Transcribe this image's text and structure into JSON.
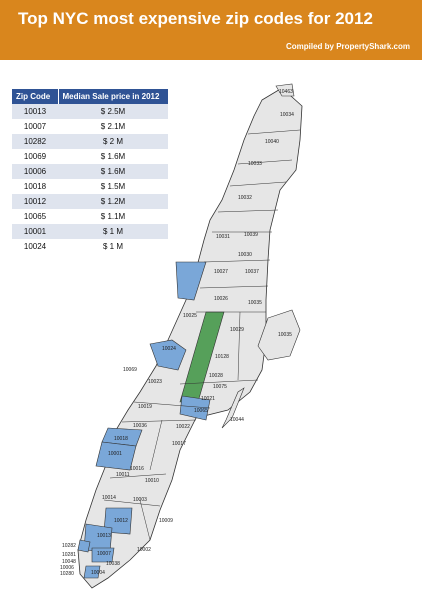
{
  "header": {
    "title": "Top NYC most expensive zip codes for 2012",
    "credit": "Compiled by PropertyShark.com"
  },
  "legend_table": {
    "columns": [
      "Zip Code",
      "Median Sale price in 2012"
    ],
    "rows": [
      {
        "zip": "10013",
        "price": "$ 2.5M"
      },
      {
        "zip": "10007",
        "price": "$ 2.1M"
      },
      {
        "zip": "10282",
        "price": "$ 2 M"
      },
      {
        "zip": "10069",
        "price": "$ 1.6M"
      },
      {
        "zip": "10006",
        "price": "$ 1.6M"
      },
      {
        "zip": "10018",
        "price": "$ 1.5M"
      },
      {
        "zip": "10012",
        "price": "$ 1.2M"
      },
      {
        "zip": "10065",
        "price": "$ 1.1M"
      },
      {
        "zip": "10001",
        "price": "$ 1 M"
      },
      {
        "zip": "10024",
        "price": "$ 1 M"
      }
    ]
  },
  "map": {
    "highlighted_zips": [
      "10013",
      "10007",
      "10282",
      "10069",
      "10006",
      "10018",
      "10012",
      "10065",
      "10001",
      "10024"
    ],
    "zip_labels": [
      "10463",
      "10034",
      "10040",
      "10033",
      "10032",
      "10031",
      "10039",
      "10030",
      "10037",
      "10027",
      "10026",
      "10035",
      "10029",
      "10025",
      "10128",
      "10024",
      "10069",
      "10023",
      "10028",
      "10075",
      "10021",
      "10065",
      "10019",
      "10036",
      "10022",
      "10017",
      "10018",
      "10001",
      "10016",
      "10010",
      "10011",
      "10014",
      "10003",
      "10012",
      "10009",
      "10013",
      "10002",
      "10282",
      "10281",
      "10048",
      "10038",
      "10280",
      "10006",
      "10007",
      "10004",
      "10044",
      "10035"
    ],
    "park_label": "",
    "colors": {
      "highlight": "#7aa7d8",
      "base": "#e6e6e6",
      "park": "#56a05a",
      "border": "#333333",
      "header": "#d9861d",
      "table_header": "#2f5395",
      "table_stripe": "#dfe4ee"
    }
  }
}
